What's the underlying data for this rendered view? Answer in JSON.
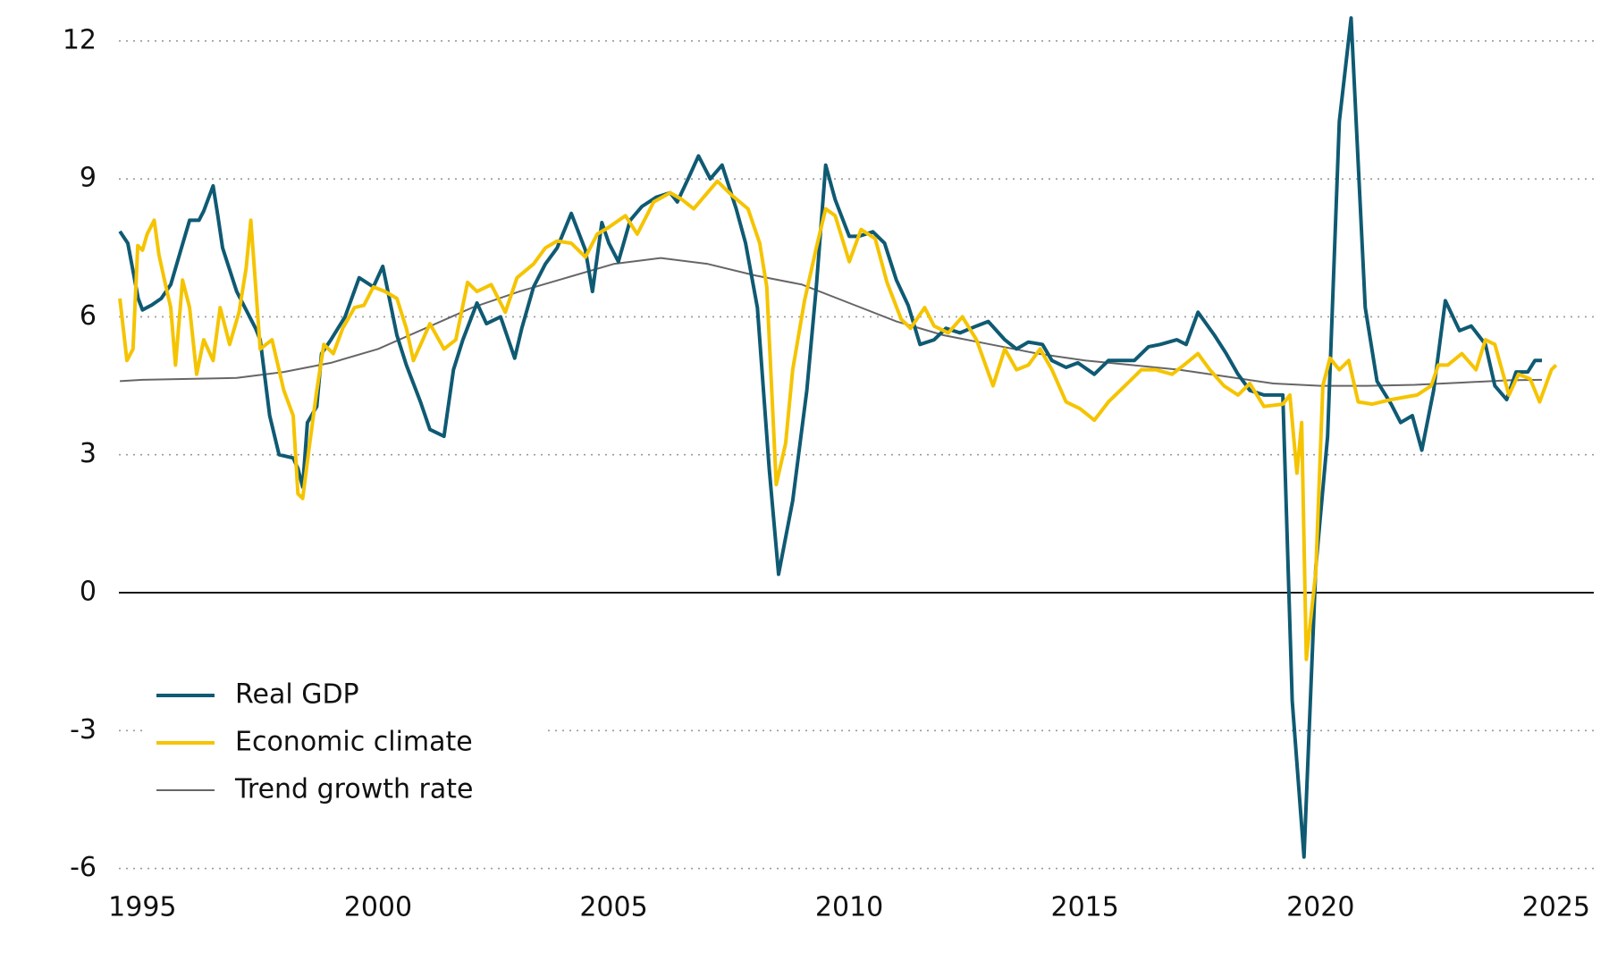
{
  "chart_data": {
    "type": "line",
    "xlim": [
      1994.5,
      2025.8
    ],
    "ylim": [
      -6.3,
      12.6
    ],
    "xticks": [
      1995,
      2000,
      2005,
      2010,
      2015,
      2020,
      2025
    ],
    "yticks": [
      -6,
      -3,
      0,
      3,
      6,
      9,
      12
    ],
    "grid": true,
    "legend": "lower left",
    "series": [
      {
        "name": "Real GDP",
        "color": "#0f5a73",
        "x": [
          1994.52,
          1994.69,
          1994.91,
          1995.0,
          1995.2,
          1995.4,
          1995.6,
          1995.8,
          1996.0,
          1996.2,
          1996.3,
          1996.5,
          1996.6,
          1996.7,
          1997.0,
          1997.4,
          1997.5,
          1997.7,
          1997.9,
          1998.2,
          1998.3,
          1998.4,
          1998.5,
          1998.7,
          1998.8,
          1999.0,
          1999.3,
          1999.6,
          1999.9,
          2000.1,
          2000.4,
          2000.6,
          2000.9,
          2001.1,
          2001.4,
          2001.6,
          2001.8,
          2002.1,
          2002.3,
          2002.6,
          2002.9,
          2003.05,
          2003.3,
          2003.55,
          2003.8,
          2004.1,
          2004.4,
          2004.55,
          2004.75,
          2004.9,
          2005.1,
          2005.35,
          2005.6,
          2005.9,
          2006.2,
          2006.35,
          2006.6,
          2006.8,
          2007.05,
          2007.3,
          2007.6,
          2007.8,
          2008.05,
          2008.3,
          2008.5,
          2008.8,
          2009.1,
          2009.3,
          2009.5,
          2009.7,
          2010.0,
          2010.2,
          2010.5,
          2010.75,
          2011.0,
          2011.25,
          2011.5,
          2011.8,
          2012.05,
          2012.35,
          2012.7,
          2012.95,
          2013.3,
          2013.55,
          2013.8,
          2014.1,
          2014.3,
          2014.6,
          2014.85,
          2015.2,
          2015.5,
          2015.8,
          2016.05,
          2016.35,
          2016.6,
          2016.95,
          2017.15,
          2017.4,
          2017.75,
          2018.0,
          2018.25,
          2018.5,
          2018.8,
          2019.2,
          2019.4,
          2019.65,
          2019.9,
          2020.15,
          2020.4,
          2020.5,
          2020.65,
          2020.95,
          2021.2,
          2021.5,
          2021.7,
          2021.95,
          2022.15,
          2022.4,
          2022.65,
          2022.95,
          2023.2,
          2023.5,
          2023.7,
          2023.95,
          2024.15,
          2024.4,
          2024.55,
          2024.7
        ],
        "values": [
          7.86,
          7.6,
          6.4,
          6.15,
          6.26,
          6.4,
          6.7,
          7.4,
          8.1,
          8.1,
          8.3,
          8.85,
          8.2,
          7.5,
          6.55,
          5.75,
          5.5,
          3.85,
          3.0,
          2.93,
          2.7,
          2.3,
          3.7,
          4.05,
          5.2,
          5.5,
          6.0,
          6.85,
          6.65,
          7.1,
          5.6,
          4.95,
          4.15,
          3.55,
          3.4,
          4.85,
          5.5,
          6.3,
          5.85,
          6.0,
          5.1,
          5.75,
          6.65,
          7.15,
          7.5,
          8.25,
          7.45,
          6.55,
          8.05,
          7.6,
          7.2,
          8.1,
          8.4,
          8.6,
          8.7,
          8.5,
          9.05,
          9.5,
          9.0,
          9.3,
          8.35,
          7.6,
          6.2,
          2.7,
          0.4,
          2.0,
          4.4,
          6.65,
          9.3,
          8.55,
          7.75,
          7.75,
          7.85,
          7.6,
          6.8,
          6.25,
          5.4,
          5.5,
          5.75,
          5.65,
          5.8,
          5.9,
          5.5,
          5.3,
          5.45,
          5.4,
          5.05,
          4.9,
          5.0,
          4.75,
          5.05,
          5.05,
          5.05,
          5.35,
          5.4,
          5.5,
          5.4,
          6.1,
          5.6,
          5.2,
          4.75,
          4.4,
          4.3,
          4.3,
          -2.35,
          -5.75,
          0.55,
          3.4,
          10.25,
          11.15,
          12.5,
          6.2,
          4.6,
          4.1,
          3.7,
          3.85,
          3.1,
          4.4,
          6.35,
          5.7,
          5.8,
          5.4,
          4.5,
          4.2,
          4.8,
          4.8,
          5.05,
          5.05
        ]
      },
      {
        "name": "Economic climate",
        "color": "#f5c400",
        "x": [
          1994.52,
          1994.67,
          1994.8,
          1994.9,
          1995.0,
          1995.1,
          1995.25,
          1995.35,
          1995.5,
          1995.6,
          1995.7,
          1995.85,
          1996.0,
          1996.15,
          1996.3,
          1996.5,
          1996.65,
          1996.85,
          1997.05,
          1997.2,
          1997.3,
          1997.5,
          1997.75,
          1998.0,
          1998.2,
          1998.3,
          1998.4,
          1998.55,
          1998.7,
          1998.85,
          1999.05,
          1999.25,
          1999.5,
          1999.7,
          1999.9,
          2000.15,
          2000.4,
          2000.6,
          2000.75,
          2000.95,
          2001.1,
          2001.4,
          2001.65,
          2001.9,
          2002.1,
          2002.4,
          2002.7,
          2002.95,
          2003.3,
          2003.55,
          2003.8,
          2004.1,
          2004.4,
          2004.65,
          2004.9,
          2005.25,
          2005.5,
          2005.85,
          2006.2,
          2006.45,
          2006.7,
          2006.95,
          2007.2,
          2007.5,
          2007.85,
          2008.1,
          2008.25,
          2008.45,
          2008.65,
          2008.8,
          2009.05,
          2009.3,
          2009.5,
          2009.7,
          2010.0,
          2010.25,
          2010.55,
          2010.8,
          2011.1,
          2011.3,
          2011.6,
          2011.8,
          2012.1,
          2012.4,
          2012.7,
          2013.05,
          2013.3,
          2013.55,
          2013.8,
          2014.05,
          2014.3,
          2014.6,
          2014.9,
          2015.2,
          2015.5,
          2015.85,
          2016.2,
          2016.5,
          2016.85,
          2017.1,
          2017.4,
          2017.65,
          2017.95,
          2018.25,
          2018.5,
          2018.8,
          2019.2,
          2019.35,
          2019.5,
          2019.6,
          2019.7,
          2019.9,
          2020.05,
          2020.2,
          2020.4,
          2020.6,
          2020.8,
          2021.1,
          2021.5,
          2022.05,
          2022.35,
          2022.5,
          2022.7,
          2023.0,
          2023.3,
          2023.5,
          2023.7,
          2024.0,
          2024.2,
          2024.45,
          2024.65,
          2024.9,
          2025.0
        ],
        "values": [
          6.4,
          5.05,
          5.3,
          7.55,
          7.45,
          7.8,
          8.1,
          7.35,
          6.65,
          6.2,
          4.95,
          6.8,
          6.2,
          4.75,
          5.5,
          5.05,
          6.2,
          5.4,
          6.1,
          7.05,
          8.1,
          5.3,
          5.5,
          4.4,
          3.85,
          2.15,
          2.05,
          3.25,
          4.4,
          5.4,
          5.2,
          5.75,
          6.2,
          6.25,
          6.65,
          6.55,
          6.4,
          5.75,
          5.05,
          5.5,
          5.85,
          5.3,
          5.5,
          6.75,
          6.55,
          6.7,
          6.1,
          6.85,
          7.15,
          7.5,
          7.65,
          7.6,
          7.3,
          7.8,
          7.95,
          8.2,
          7.8,
          8.5,
          8.7,
          8.55,
          8.35,
          8.65,
          8.95,
          8.65,
          8.35,
          7.6,
          6.65,
          2.35,
          3.25,
          4.85,
          6.35,
          7.5,
          8.35,
          8.2,
          7.2,
          7.9,
          7.7,
          6.75,
          5.95,
          5.75,
          6.2,
          5.8,
          5.65,
          6.0,
          5.5,
          4.5,
          5.3,
          4.85,
          4.95,
          5.3,
          4.85,
          4.15,
          4.0,
          3.75,
          4.15,
          4.5,
          4.85,
          4.85,
          4.75,
          4.95,
          5.2,
          4.85,
          4.5,
          4.3,
          4.55,
          4.05,
          4.1,
          4.3,
          2.6,
          3.7,
          -1.45,
          0.45,
          4.5,
          5.1,
          4.85,
          5.05,
          4.15,
          4.1,
          4.2,
          4.3,
          4.5,
          4.95,
          4.95,
          5.2,
          4.85,
          5.5,
          5.4,
          4.3,
          4.75,
          4.65,
          4.15,
          4.85,
          4.95
        ]
      },
      {
        "name": "Trend growth rate",
        "color": "#666666",
        "x": [
          1994.52,
          1995,
          1997,
          1998,
          1999,
          2000,
          2001,
          2002,
          2003,
          2004,
          2005,
          2006,
          2007,
          2008,
          2009,
          2010,
          2011,
          2012,
          2013,
          2014,
          2015,
          2016,
          2017,
          2018,
          2019,
          2020,
          2021,
          2022,
          2023,
          2024,
          2024.7
        ],
        "values": [
          4.6,
          4.63,
          4.67,
          4.8,
          5.0,
          5.3,
          5.75,
          6.2,
          6.55,
          6.85,
          7.15,
          7.28,
          7.15,
          6.9,
          6.7,
          6.3,
          5.9,
          5.6,
          5.4,
          5.2,
          5.05,
          4.95,
          4.85,
          4.7,
          4.55,
          4.5,
          4.5,
          4.52,
          4.57,
          4.62,
          4.63
        ]
      }
    ]
  }
}
